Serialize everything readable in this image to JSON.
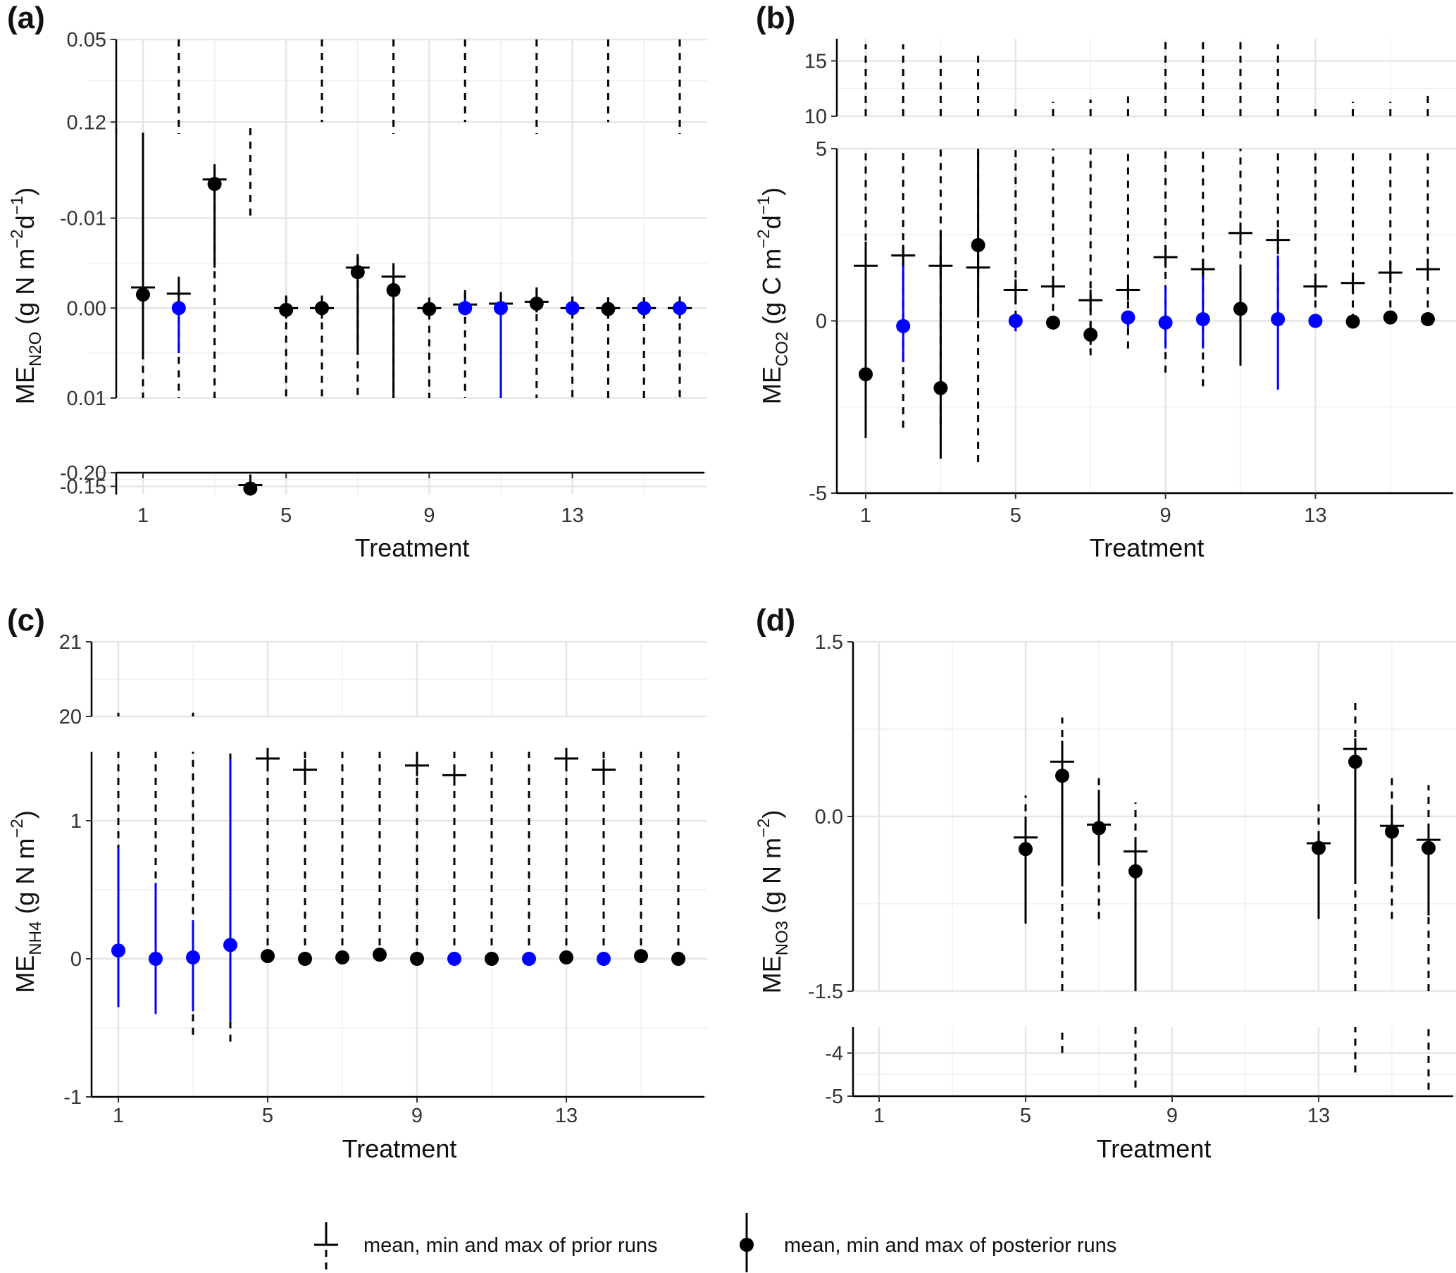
{
  "colors": {
    "posterior_constrained": "#0000ff",
    "posterior": "#000000",
    "prior": "#000000",
    "grid": "#e6e6e6"
  },
  "legend": {
    "prior_label": "mean, min and max of prior runs",
    "posterior_label": "mean, min and max of posterior runs"
  },
  "chart_data": [
    {
      "id": "a",
      "panel_label": "(a)",
      "type": "errorbar",
      "xlabel": "Treatment",
      "ylabel": {
        "main": "ME",
        "sub": "N2O",
        "unit": " (g N m",
        "sup1": "−2",
        "mid": "d",
        "sup2": "−1",
        "tail": ")"
      },
      "x_ticks": [
        "1",
        "5",
        "9",
        "13"
      ],
      "segments": [
        {
          "ylim": [
            -0.2,
            -0.12
          ],
          "ticks": [
            "-0.20",
            "-0.15"
          ]
        },
        {
          "ylim": [
            -0.02,
            0.01
          ],
          "ticks": [
            "-0.01",
            "0.00",
            "0.01"
          ]
        },
        {
          "ylim": [
            0.05,
            0.13
          ],
          "ticks": [
            "0.05",
            "0.12"
          ]
        }
      ],
      "prior": [
        {
          "x": 1,
          "mean": -0.0023,
          "min": -0.004,
          "max": 0.01
        },
        {
          "x": 2,
          "mean": -0.0016,
          "min": -0.0035,
          "max": 0.135
        },
        {
          "x": 3,
          "mean": -0.0143,
          "min": -0.016,
          "max": 0.01
        },
        {
          "x": 4,
          "mean": -0.155,
          "min": -0.165,
          "max": -0.01
        },
        {
          "x": 5,
          "mean": 0.0,
          "min": -0.0014,
          "max": 0.01
        },
        {
          "x": 6,
          "mean": 0.0,
          "min": -0.0014,
          "max": 0.12
        },
        {
          "x": 7,
          "mean": -0.0045,
          "min": -0.006,
          "max": 0.01
        },
        {
          "x": 8,
          "mean": -0.0035,
          "min": -0.005,
          "max": 0.13
        },
        {
          "x": 9,
          "mean": 0.0,
          "min": -0.001,
          "max": 0.01
        },
        {
          "x": 10,
          "mean": -0.0004,
          "min": -0.002,
          "max": 0.12
        },
        {
          "x": 11,
          "mean": -0.0005,
          "min": -0.0018,
          "max": 0.01
        },
        {
          "x": 12,
          "mean": -0.0007,
          "min": -0.0023,
          "max": 0.13
        },
        {
          "x": 13,
          "mean": 0.0,
          "min": -0.0013,
          "max": 0.01
        },
        {
          "x": 14,
          "mean": 0.0,
          "min": -0.0012,
          "max": 0.12
        },
        {
          "x": 15,
          "mean": 0.0,
          "min": -0.0012,
          "max": 0.01
        },
        {
          "x": 16,
          "mean": 0.0,
          "min": -0.0013,
          "max": 0.13
        }
      ],
      "posterior": [
        {
          "x": 1,
          "mean": -0.0015,
          "min": -0.0195,
          "max": 0.0055,
          "constrained": false
        },
        {
          "x": 2,
          "mean": 0.0,
          "min": -0.0005,
          "max": 0.005,
          "constrained": true
        },
        {
          "x": 3,
          "mean": -0.0138,
          "min": -0.015,
          "max": -0.0045,
          "constrained": false
        },
        {
          "x": 4,
          "mean": -0.142,
          "min": -0.155,
          "max": -0.138,
          "constrained": false
        },
        {
          "x": 5,
          "mean": 0.0002,
          "min": -0.0003,
          "max": 0.0007,
          "constrained": false
        },
        {
          "x": 6,
          "mean": 0.0,
          "min": -0.0005,
          "max": 0.0005,
          "constrained": false
        },
        {
          "x": 7,
          "mean": -0.004,
          "min": -0.0055,
          "max": 0.0045,
          "constrained": false
        },
        {
          "x": 8,
          "mean": -0.002,
          "min": -0.0035,
          "max": 0.012,
          "constrained": false
        },
        {
          "x": 9,
          "mean": 0.0001,
          "min": -0.0004,
          "max": 0.0006,
          "constrained": false
        },
        {
          "x": 10,
          "mean": 0.0,
          "min": -0.001,
          "max": 0.0003,
          "constrained": true
        },
        {
          "x": 11,
          "mean": 0.0,
          "min": -0.0005,
          "max": 0.01,
          "constrained": true
        },
        {
          "x": 12,
          "mean": -0.0005,
          "min": -0.001,
          "max": 0.0002,
          "constrained": false
        },
        {
          "x": 13,
          "mean": 0.0,
          "min": -0.0003,
          "max": 0.0003,
          "constrained": true
        },
        {
          "x": 14,
          "mean": 0.0001,
          "min": -0.0004,
          "max": 0.0006,
          "constrained": false
        },
        {
          "x": 15,
          "mean": 0.0,
          "min": -0.0003,
          "max": 0.0003,
          "constrained": true
        },
        {
          "x": 16,
          "mean": 0.0,
          "min": -0.0003,
          "max": 0.0003,
          "constrained": true
        }
      ]
    },
    {
      "id": "b",
      "panel_label": "(b)",
      "type": "errorbar",
      "xlabel": "Treatment",
      "ylabel": {
        "main": "ME",
        "sub": "CO2",
        "unit": " (g C m",
        "sup1": "−2",
        "mid": "d",
        "sup2": "−1",
        "tail": ")"
      },
      "x_ticks": [
        "1",
        "5",
        "9",
        "13"
      ],
      "segments": [
        {
          "ylim": [
            -5,
            5
          ],
          "ticks": [
            "-5",
            "0",
            "5"
          ]
        },
        {
          "ylim": [
            10,
            17
          ],
          "ticks": [
            "10",
            "15"
          ]
        }
      ],
      "prior": [
        {
          "x": 1,
          "mean": 1.6,
          "min": 0.0,
          "max": 16.5
        },
        {
          "x": 2,
          "mean": 1.9,
          "min": -3.1,
          "max": 16.5
        },
        {
          "x": 3,
          "mean": 1.6,
          "min": -3.0,
          "max": 15.5
        },
        {
          "x": 4,
          "mean": 1.55,
          "min": -4.1,
          "max": 15.5
        },
        {
          "x": 5,
          "mean": 0.9,
          "min": -0.3,
          "max": 11.2
        },
        {
          "x": 6,
          "mean": 1.0,
          "min": -0.1,
          "max": 11.3
        },
        {
          "x": 7,
          "mean": 0.6,
          "min": -1.0,
          "max": 11.5
        },
        {
          "x": 8,
          "mean": 0.9,
          "min": -0.8,
          "max": 11.8
        },
        {
          "x": 9,
          "mean": 1.85,
          "min": -1.5,
          "max": 17.0
        },
        {
          "x": 10,
          "mean": 1.5,
          "min": -1.9,
          "max": 16.8
        },
        {
          "x": 11,
          "mean": 2.55,
          "min": -0.9,
          "max": 16.8
        },
        {
          "x": 12,
          "mean": 2.35,
          "min": 0.0,
          "max": 16.5
        },
        {
          "x": 13,
          "mean": 1.0,
          "min": 0.0,
          "max": 11.2
        },
        {
          "x": 14,
          "mean": 1.1,
          "min": 0.0,
          "max": 11.3
        },
        {
          "x": 15,
          "mean": 1.4,
          "min": 0.0,
          "max": 11.3
        },
        {
          "x": 16,
          "mean": 1.5,
          "min": 0.0,
          "max": 12.3
        }
      ],
      "posterior": [
        {
          "x": 1,
          "mean": -1.55,
          "min": -3.4,
          "max": 2.3,
          "constrained": false
        },
        {
          "x": 2,
          "mean": -0.15,
          "min": -1.2,
          "max": 1.6,
          "constrained": true
        },
        {
          "x": 3,
          "mean": -1.95,
          "min": -4.0,
          "max": 2.6,
          "constrained": false
        },
        {
          "x": 4,
          "mean": 2.2,
          "min": 0.1,
          "max": 4.9,
          "constrained": false
        },
        {
          "x": 5,
          "mean": 0.0,
          "min": -0.3,
          "max": 0.2,
          "constrained": true
        },
        {
          "x": 6,
          "mean": -0.05,
          "min": -0.1,
          "max": 0.0,
          "constrained": false
        },
        {
          "x": 7,
          "mean": -0.4,
          "min": -0.7,
          "max": 0.0,
          "constrained": false
        },
        {
          "x": 8,
          "mean": 0.1,
          "min": -0.2,
          "max": 0.3,
          "constrained": true
        },
        {
          "x": 9,
          "mean": -0.05,
          "min": -0.8,
          "max": 1.0,
          "constrained": true
        },
        {
          "x": 10,
          "mean": 0.05,
          "min": -0.8,
          "max": 1.3,
          "constrained": true
        },
        {
          "x": 11,
          "mean": 0.35,
          "min": -1.3,
          "max": 1.6,
          "constrained": false
        },
        {
          "x": 12,
          "mean": 0.05,
          "min": -2.0,
          "max": 1.9,
          "constrained": true
        },
        {
          "x": 13,
          "mean": 0.0,
          "min": -0.1,
          "max": 0.1,
          "constrained": true
        },
        {
          "x": 14,
          "mean": -0.02,
          "min": -0.1,
          "max": 0.1,
          "constrained": false
        },
        {
          "x": 15,
          "mean": 0.1,
          "min": 0.0,
          "max": 0.2,
          "constrained": false
        },
        {
          "x": 16,
          "mean": 0.05,
          "min": 0.0,
          "max": 0.1,
          "constrained": false
        }
      ]
    },
    {
      "id": "c",
      "panel_label": "(c)",
      "type": "errorbar",
      "xlabel": "Treatment",
      "ylabel": {
        "main": "ME",
        "sub": "NH4",
        "unit": " (g N m",
        "sup1": "−2",
        "mid": "",
        "sup2": "",
        "tail": ")"
      },
      "x_ticks": [
        "1",
        "5",
        "9",
        "13"
      ],
      "segments": [
        {
          "ylim": [
            -1,
            1.5
          ],
          "ticks": [
            "-1",
            "0",
            "1"
          ]
        },
        {
          "ylim": [
            20,
            21
          ],
          "ticks": [
            "20",
            "21"
          ]
        }
      ],
      "prior": [
        {
          "x": 1,
          "mean": null,
          "min": 0.0,
          "max": 20.05
        },
        {
          "x": 2,
          "mean": null,
          "min": 0.0,
          "max": 20.0
        },
        {
          "x": 3,
          "mean": null,
          "min": -0.55,
          "max": 20.05
        },
        {
          "x": 4,
          "mean": null,
          "min": -0.6,
          "max": 1.5
        },
        {
          "x": 5,
          "mean": 1.45,
          "min": 0.0,
          "max": 1.5
        },
        {
          "x": 6,
          "mean": 1.37,
          "min": 0.0,
          "max": 1.5
        },
        {
          "x": 7,
          "mean": null,
          "min": 0.0,
          "max": 1.5
        },
        {
          "x": 8,
          "mean": null,
          "min": 0.0,
          "max": 1.5
        },
        {
          "x": 9,
          "mean": 1.4,
          "min": 0.0,
          "max": 1.5
        },
        {
          "x": 10,
          "mean": 1.33,
          "min": 0.0,
          "max": 1.5
        },
        {
          "x": 11,
          "mean": null,
          "min": 0.0,
          "max": 1.5
        },
        {
          "x": 12,
          "mean": null,
          "min": 0.0,
          "max": 1.5
        },
        {
          "x": 13,
          "mean": 1.45,
          "min": 0.0,
          "max": 1.5
        },
        {
          "x": 14,
          "mean": 1.37,
          "min": 0.0,
          "max": 1.5
        },
        {
          "x": 15,
          "mean": null,
          "min": 0.0,
          "max": 1.5
        },
        {
          "x": 16,
          "mean": null,
          "min": 0.0,
          "max": 1.5
        }
      ],
      "posterior": [
        {
          "x": 1,
          "mean": 0.06,
          "min": -0.35,
          "max": 0.8,
          "constrained": true
        },
        {
          "x": 2,
          "mean": 0.0,
          "min": -0.4,
          "max": 0.55,
          "constrained": true
        },
        {
          "x": 3,
          "mean": 0.01,
          "min": -0.38,
          "max": 0.28,
          "constrained": true
        },
        {
          "x": 4,
          "mean": 0.1,
          "min": -0.45,
          "max": 1.45,
          "constrained": true
        },
        {
          "x": 5,
          "mean": 0.02,
          "min": 0.02,
          "max": 0.02,
          "constrained": false
        },
        {
          "x": 6,
          "mean": 0.0,
          "min": 0.0,
          "max": 0.0,
          "constrained": false
        },
        {
          "x": 7,
          "mean": 0.01,
          "min": 0.01,
          "max": 0.01,
          "constrained": false
        },
        {
          "x": 8,
          "mean": 0.03,
          "min": 0.03,
          "max": 0.03,
          "constrained": false
        },
        {
          "x": 9,
          "mean": 0.0,
          "min": 0.0,
          "max": 0.0,
          "constrained": false
        },
        {
          "x": 10,
          "mean": 0.0,
          "min": 0.0,
          "max": 0.0,
          "constrained": true
        },
        {
          "x": 11,
          "mean": 0.0,
          "min": 0.0,
          "max": 0.0,
          "constrained": false
        },
        {
          "x": 12,
          "mean": 0.0,
          "min": 0.0,
          "max": 0.0,
          "constrained": true
        },
        {
          "x": 13,
          "mean": 0.01,
          "min": 0.01,
          "max": 0.01,
          "constrained": false
        },
        {
          "x": 14,
          "mean": 0.0,
          "min": 0.0,
          "max": 0.0,
          "constrained": true
        },
        {
          "x": 15,
          "mean": 0.02,
          "min": 0.02,
          "max": 0.02,
          "constrained": false
        },
        {
          "x": 16,
          "mean": 0.0,
          "min": 0.0,
          "max": 0.0,
          "constrained": false
        }
      ]
    },
    {
      "id": "d",
      "panel_label": "(d)",
      "type": "errorbar",
      "xlabel": "Treatment",
      "ylabel": {
        "main": "ME",
        "sub": "NO3",
        "unit": " (g N m",
        "sup1": "−2",
        "mid": "",
        "sup2": "",
        "tail": ")"
      },
      "x_ticks": [
        "1",
        "5",
        "9",
        "13"
      ],
      "segments": [
        {
          "ylim": [
            -5,
            -3.4
          ],
          "ticks": [
            "-5",
            "-4"
          ]
        },
        {
          "ylim": [
            -1.5,
            1.5
          ],
          "ticks": [
            "-1.5",
            "0.0",
            "1.5"
          ]
        }
      ],
      "prior": [
        {
          "x": 5,
          "mean": -0.18,
          "min": -0.3,
          "max": 0.18
        },
        {
          "x": 6,
          "mean": 0.47,
          "min": -4.0,
          "max": 0.85
        },
        {
          "x": 7,
          "mean": -0.07,
          "min": -0.88,
          "max": 0.35
        },
        {
          "x": 8,
          "mean": -0.3,
          "min": -4.8,
          "max": 0.12
        },
        {
          "x": 13,
          "mean": -0.23,
          "min": -0.3,
          "max": 0.15
        },
        {
          "x": 14,
          "mean": 0.58,
          "min": -4.45,
          "max": 0.98
        },
        {
          "x": 15,
          "mean": -0.08,
          "min": -0.88,
          "max": 0.35
        },
        {
          "x": 16,
          "mean": -0.2,
          "min": -4.85,
          "max": 0.27
        }
      ],
      "posterior": [
        {
          "x": 5,
          "mean": -0.28,
          "min": -0.92,
          "max": 0.0,
          "constrained": false
        },
        {
          "x": 6,
          "mean": 0.35,
          "min": -0.6,
          "max": 0.65,
          "constrained": false
        },
        {
          "x": 7,
          "mean": -0.1,
          "min": -0.38,
          "max": 0.23,
          "constrained": false
        },
        {
          "x": 8,
          "mean": -0.47,
          "min": -1.5,
          "max": -0.3,
          "constrained": false
        },
        {
          "x": 13,
          "mean": -0.27,
          "min": -0.88,
          "max": -0.2,
          "constrained": false
        },
        {
          "x": 14,
          "mean": 0.47,
          "min": -0.53,
          "max": 0.58,
          "constrained": false
        },
        {
          "x": 15,
          "mean": -0.13,
          "min": -0.43,
          "max": 0.05,
          "constrained": false
        },
        {
          "x": 16,
          "mean": -0.27,
          "min": -0.85,
          "max": -0.2,
          "constrained": false
        }
      ]
    }
  ]
}
